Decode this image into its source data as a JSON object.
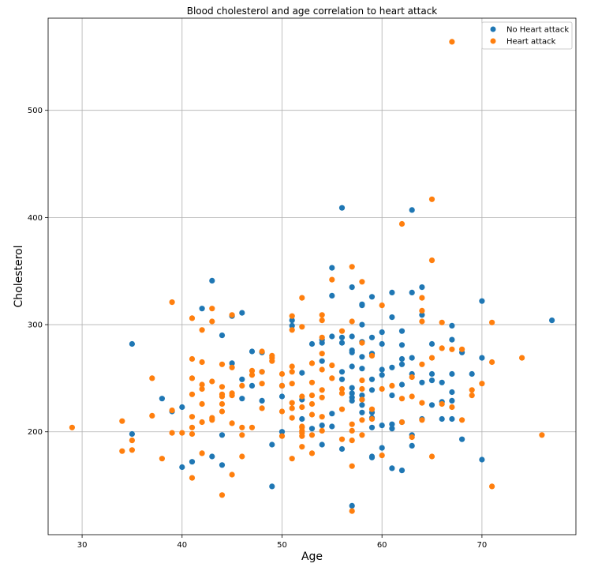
{
  "chart_data": {
    "type": "scatter",
    "title": "Blood cholesterol and age correlation to heart attack",
    "xlabel": "Age",
    "ylabel": "Cholesterol",
    "xlim": [
      26.6,
      79.4
    ],
    "ylim": [
      104,
      586
    ],
    "xticks": [
      30,
      40,
      50,
      60,
      70
    ],
    "yticks": [
      200,
      300,
      400,
      500
    ],
    "grid": true,
    "legend_position": "top-right",
    "series": [
      {
        "name": "No Heart attack",
        "color": "#1f77b4",
        "points": [
          [
            35,
            282
          ],
          [
            35,
            198
          ],
          [
            38,
            231
          ],
          [
            39,
            219
          ],
          [
            40,
            223
          ],
          [
            40,
            167
          ],
          [
            41,
            172
          ],
          [
            42,
            315
          ],
          [
            43,
            341
          ],
          [
            43,
            177
          ],
          [
            44,
            290
          ],
          [
            44,
            197
          ],
          [
            44,
            169
          ],
          [
            45,
            264
          ],
          [
            45,
            308
          ],
          [
            46,
            311
          ],
          [
            46,
            249
          ],
          [
            46,
            231
          ],
          [
            47,
            275
          ],
          [
            47,
            243
          ],
          [
            48,
            274
          ],
          [
            48,
            229
          ],
          [
            48,
            256
          ],
          [
            49,
            188
          ],
          [
            49,
            149
          ],
          [
            50,
            243
          ],
          [
            50,
            233
          ],
          [
            50,
            200
          ],
          [
            51,
            304
          ],
          [
            51,
            299
          ],
          [
            52,
            255
          ],
          [
            52,
            230
          ],
          [
            52,
            212
          ],
          [
            53,
            282
          ],
          [
            53,
            203
          ],
          [
            54,
            286
          ],
          [
            54,
            283
          ],
          [
            54,
            266
          ],
          [
            54,
            206
          ],
          [
            54,
            188
          ],
          [
            55,
            353
          ],
          [
            55,
            327
          ],
          [
            55,
            289
          ],
          [
            55,
            217
          ],
          [
            55,
            205
          ],
          [
            56,
            409
          ],
          [
            56,
            288
          ],
          [
            56,
            283
          ],
          [
            56,
            256
          ],
          [
            56,
            249
          ],
          [
            56,
            184
          ],
          [
            57,
            335
          ],
          [
            57,
            289
          ],
          [
            57,
            276
          ],
          [
            57,
            274
          ],
          [
            57,
            261
          ],
          [
            57,
            241
          ],
          [
            57,
            236
          ],
          [
            57,
            232
          ],
          [
            57,
            229
          ],
          [
            57,
            131
          ],
          [
            58,
            319
          ],
          [
            58,
            318
          ],
          [
            58,
            300
          ],
          [
            58,
            284
          ],
          [
            58,
            270
          ],
          [
            58,
            259
          ],
          [
            58,
            234
          ],
          [
            58,
            230
          ],
          [
            58,
            225
          ],
          [
            58,
            218
          ],
          [
            59,
            326
          ],
          [
            59,
            288
          ],
          [
            59,
            273
          ],
          [
            59,
            249
          ],
          [
            59,
            239
          ],
          [
            59,
            218
          ],
          [
            59,
            213
          ],
          [
            59,
            204
          ],
          [
            59,
            177
          ],
          [
            59,
            176
          ],
          [
            60,
            293
          ],
          [
            60,
            282
          ],
          [
            60,
            258
          ],
          [
            60,
            253
          ],
          [
            60,
            206
          ],
          [
            60,
            185
          ],
          [
            61,
            330
          ],
          [
            61,
            307
          ],
          [
            61,
            260
          ],
          [
            61,
            234
          ],
          [
            61,
            207
          ],
          [
            61,
            203
          ],
          [
            61,
            166
          ],
          [
            62,
            294
          ],
          [
            62,
            281
          ],
          [
            62,
            268
          ],
          [
            62,
            263
          ],
          [
            62,
            244
          ],
          [
            62,
            209
          ],
          [
            62,
            164
          ],
          [
            63,
            407
          ],
          [
            63,
            330
          ],
          [
            63,
            269
          ],
          [
            63,
            254
          ],
          [
            63,
            197
          ],
          [
            63,
            187
          ],
          [
            64,
            335
          ],
          [
            64,
            309
          ],
          [
            64,
            246
          ],
          [
            64,
            212
          ],
          [
            65,
            282
          ],
          [
            65,
            254
          ],
          [
            65,
            248
          ],
          [
            65,
            225
          ],
          [
            66,
            228
          ],
          [
            66,
            212
          ],
          [
            66,
            246
          ],
          [
            67,
            299
          ],
          [
            67,
            286
          ],
          [
            67,
            254
          ],
          [
            67,
            237
          ],
          [
            67,
            229
          ],
          [
            67,
            212
          ],
          [
            68,
            274
          ],
          [
            68,
            193
          ],
          [
            69,
            254
          ],
          [
            70,
            322
          ],
          [
            70,
            269
          ],
          [
            70,
            174
          ],
          [
            77,
            304
          ]
        ]
      },
      {
        "name": "Heart attack",
        "color": "#ff7f0e",
        "points": [
          [
            29,
            204
          ],
          [
            34,
            210
          ],
          [
            34,
            182
          ],
          [
            35,
            192
          ],
          [
            35,
            183
          ],
          [
            37,
            250
          ],
          [
            37,
            215
          ],
          [
            38,
            175
          ],
          [
            39,
            321
          ],
          [
            39,
            220
          ],
          [
            39,
            199
          ],
          [
            40,
            199
          ],
          [
            41,
            306
          ],
          [
            41,
            268
          ],
          [
            41,
            250
          ],
          [
            41,
            235
          ],
          [
            41,
            214
          ],
          [
            41,
            204
          ],
          [
            41,
            198
          ],
          [
            41,
            157
          ],
          [
            42,
            295
          ],
          [
            42,
            265
          ],
          [
            42,
            244
          ],
          [
            42,
            240
          ],
          [
            42,
            226
          ],
          [
            42,
            209
          ],
          [
            42,
            180
          ],
          [
            43,
            315
          ],
          [
            43,
            303
          ],
          [
            43,
            247
          ],
          [
            43,
            213
          ],
          [
            43,
            211
          ],
          [
            44,
            263
          ],
          [
            44,
            242
          ],
          [
            44,
            235
          ],
          [
            44,
            233
          ],
          [
            44,
            226
          ],
          [
            44,
            219
          ],
          [
            44,
            141
          ],
          [
            45,
            309
          ],
          [
            45,
            260
          ],
          [
            45,
            236
          ],
          [
            45,
            234
          ],
          [
            45,
            208
          ],
          [
            45,
            160
          ],
          [
            46,
            243
          ],
          [
            46,
            204
          ],
          [
            46,
            197
          ],
          [
            46,
            177
          ],
          [
            47,
            257
          ],
          [
            47,
            253
          ],
          [
            47,
            204
          ],
          [
            48,
            275
          ],
          [
            48,
            256
          ],
          [
            48,
            245
          ],
          [
            48,
            222
          ],
          [
            49,
            271
          ],
          [
            49,
            269
          ],
          [
            49,
            266
          ],
          [
            50,
            254
          ],
          [
            50,
            243
          ],
          [
            50,
            219
          ],
          [
            50,
            196
          ],
          [
            51,
            308
          ],
          [
            51,
            295
          ],
          [
            51,
            261
          ],
          [
            51,
            256
          ],
          [
            51,
            245
          ],
          [
            51,
            227
          ],
          [
            51,
            222
          ],
          [
            51,
            213
          ],
          [
            51,
            175
          ],
          [
            52,
            325
          ],
          [
            52,
            298
          ],
          [
            52,
            233
          ],
          [
            52,
            223
          ],
          [
            52,
            205
          ],
          [
            52,
            204
          ],
          [
            52,
            201
          ],
          [
            52,
            199
          ],
          [
            52,
            196
          ],
          [
            52,
            186
          ],
          [
            53,
            264
          ],
          [
            53,
            246
          ],
          [
            53,
            234
          ],
          [
            53,
            226
          ],
          [
            53,
            216
          ],
          [
            53,
            197
          ],
          [
            53,
            180
          ],
          [
            54,
            309
          ],
          [
            54,
            304
          ],
          [
            54,
            288
          ],
          [
            54,
            273
          ],
          [
            54,
            258
          ],
          [
            54,
            239
          ],
          [
            54,
            232
          ],
          [
            54,
            214
          ],
          [
            54,
            201
          ],
          [
            55,
            342
          ],
          [
            55,
            262
          ],
          [
            55,
            250
          ],
          [
            56,
            294
          ],
          [
            56,
            240
          ],
          [
            56,
            236
          ],
          [
            56,
            221
          ],
          [
            56,
            193
          ],
          [
            57,
            354
          ],
          [
            57,
            303
          ],
          [
            57,
            207
          ],
          [
            57,
            201
          ],
          [
            57,
            192
          ],
          [
            57,
            168
          ],
          [
            57,
            126
          ],
          [
            58,
            340
          ],
          [
            58,
            283
          ],
          [
            58,
            248
          ],
          [
            58,
            240
          ],
          [
            58,
            230
          ],
          [
            58,
            211
          ],
          [
            58,
            197
          ],
          [
            59,
            271
          ],
          [
            59,
            221
          ],
          [
            59,
            212
          ],
          [
            60,
            318
          ],
          [
            60,
            240
          ],
          [
            60,
            178
          ],
          [
            61,
            243
          ],
          [
            62,
            394
          ],
          [
            62,
            231
          ],
          [
            62,
            209
          ],
          [
            63,
            251
          ],
          [
            63,
            233
          ],
          [
            63,
            195
          ],
          [
            64,
            325
          ],
          [
            64,
            313
          ],
          [
            64,
            303
          ],
          [
            64,
            263
          ],
          [
            64,
            227
          ],
          [
            64,
            211
          ],
          [
            65,
            417
          ],
          [
            65,
            360
          ],
          [
            65,
            269
          ],
          [
            65,
            177
          ],
          [
            66,
            302
          ],
          [
            66,
            278
          ],
          [
            66,
            226
          ],
          [
            67,
            564
          ],
          [
            67,
            277
          ],
          [
            67,
            223
          ],
          [
            68,
            277
          ],
          [
            68,
            211
          ],
          [
            69,
            239
          ],
          [
            69,
            234
          ],
          [
            70,
            245
          ],
          [
            71,
            302
          ],
          [
            71,
            265
          ],
          [
            71,
            149
          ],
          [
            74,
            269
          ],
          [
            76,
            197
          ]
        ]
      }
    ]
  }
}
